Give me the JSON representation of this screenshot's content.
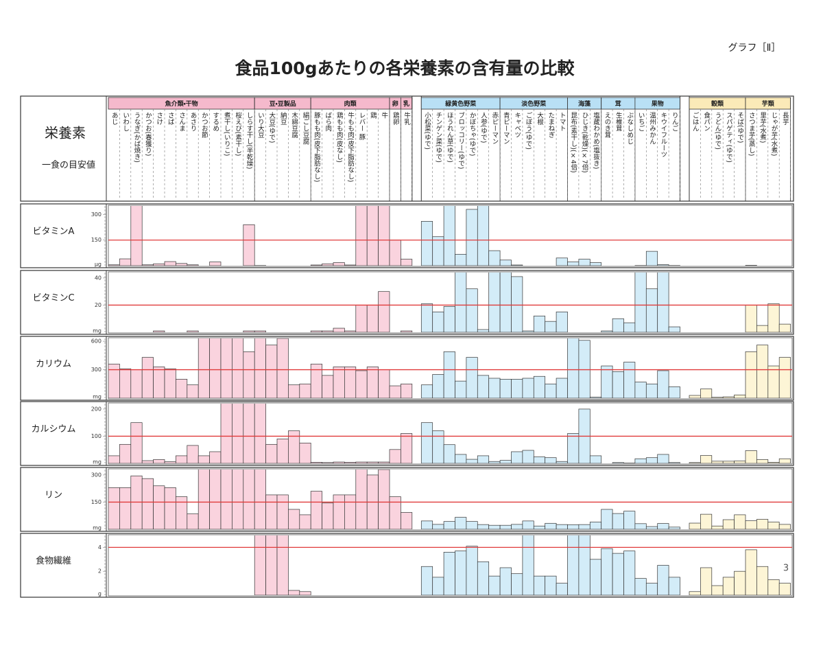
{
  "header": {
    "label": "グラフ［Ⅱ］",
    "title": "食品100gあたりの各栄養素の含有量の比較",
    "page_number": "3"
  },
  "row_header": {
    "nutrient": "栄養素",
    "target": "一食の目安値"
  },
  "chart_data": {
    "type": "bar",
    "target_color": "#e03a3a",
    "groups": [
      {
        "name": "魚介類・干物",
        "color": "#fad3de",
        "header_color": "#f5b9cc",
        "categories": [
          "あじ",
          "いわし",
          "うなぎ(かば焼き)",
          "かつお(春獲り)",
          "さけ",
          "さば",
          "さんま",
          "あさり",
          "かつお節",
          "するめ",
          "煮干し(いりこ)",
          "桜えび(素干し)",
          "しらす干し(半乾燥)"
        ]
      },
      {
        "name": "豆・豆製品",
        "color": "#fad3de",
        "header_color": "#f5b9cc",
        "categories": [
          "いり大豆",
          "大豆(ゆで)",
          "納豆",
          "木綿豆腐",
          "絹ごし豆腐"
        ]
      },
      {
        "name": "肉類",
        "color": "#fad3de",
        "header_color": "#f5b9cc",
        "categories": [
          "豚もも肉(皮下脂肪なし)",
          "ばら肉",
          "鶏もも肉(皮なし)",
          "牛もも肉(皮下脂肪なし)",
          "レバー 豚",
          "鶏",
          "牛"
        ]
      },
      {
        "name": "卵",
        "color": "#fad3de",
        "header_color": "#f5b9cc",
        "categories": [
          "鶏卵"
        ]
      },
      {
        "name": "乳",
        "color": "#fad3de",
        "header_color": "#f5b9cc",
        "categories": [
          "牛乳"
        ]
      },
      {
        "name": "緑黄色野菜",
        "color": "#d3ecf8",
        "header_color": "#b9e0f5",
        "categories": [
          "小松菜(ゆで)",
          "チンゲン菜(ゆで)",
          "ほうれん草(ゆで)",
          "ブロッコリー(ゆで)",
          "かぼちゃ(ゆで)",
          "人参(ゆで)",
          "赤ピーマン"
        ]
      },
      {
        "name": "淡色野菜",
        "color": "#d3ecf8",
        "header_color": "#b9e0f5",
        "categories": [
          "青ピーマン",
          "キャベツ",
          "ごぼう(ゆで)",
          "大根",
          "たまねぎ",
          "トマト"
        ]
      },
      {
        "name": "海藻",
        "color": "#d3ecf8",
        "header_color": "#b9e0f5",
        "categories": [
          "昆布(素干し)(×4倍)",
          "ひじき(乾燥)(×7倍)",
          "塩蔵わかめ(塩抜き)"
        ]
      },
      {
        "name": "茸",
        "color": "#d3ecf8",
        "header_color": "#b9e0f5",
        "categories": [
          "えのき茸",
          "生椎茸",
          "ぶなしめじ"
        ]
      },
      {
        "name": "果物",
        "color": "#d3ecf8",
        "header_color": "#b9e0f5",
        "categories": [
          "いちご",
          "温州みかん",
          "キウイフルーツ",
          "りんご"
        ]
      },
      {
        "name": "穀類",
        "color": "#fdf5d6",
        "header_color": "#fbeab8",
        "categories": [
          "ごはん",
          "食パン",
          "うどん(ゆで)",
          "スパゲティ(ゆで)",
          "そば(ゆで)"
        ]
      },
      {
        "name": "芋類",
        "color": "#fdf5d6",
        "header_color": "#fbeab8",
        "categories": [
          "さつま芋(蒸し)",
          "里芋(水煮)",
          "じゃが芋(水煮)",
          "長芋"
        ]
      }
    ],
    "series": [
      {
        "name": "ビタミンA",
        "unit": "μg",
        "target": 150,
        "ylim": [
          0,
          350
        ],
        "yticks": [
          150,
          300
        ],
        "values": [
          [
            5,
            40,
            1500,
            5,
            11,
            24,
            13,
            5,
            0,
            22,
            0,
            0,
            240
          ],
          [
            1,
            0,
            0,
            0,
            0
          ],
          [
            4,
            11,
            18,
            4,
            13000,
            14000,
            1100
          ],
          [
            150
          ],
          [
            38
          ],
          [
            260,
            170,
            450,
            67,
            330,
            720,
            88
          ],
          [
            33,
            4,
            0,
            0,
            0,
            45
          ],
          [
            22,
            38,
            18
          ],
          [
            0,
            0,
            0
          ],
          [
            1,
            84,
            6,
            1
          ],
          [
            0,
            0,
            0,
            0,
            0
          ],
          [
            2,
            0,
            0,
            0
          ]
        ]
      },
      {
        "name": "ビタミンC",
        "unit": "mg",
        "target": 20,
        "ylim": [
          0,
          44
        ],
        "yticks": [
          20,
          40
        ],
        "values": [
          [
            0,
            0,
            0,
            0,
            1,
            0,
            0,
            1,
            0,
            0,
            0,
            0,
            1
          ],
          [
            1,
            0,
            0,
            0,
            0
          ],
          [
            1,
            1,
            3,
            1,
            20,
            20,
            30
          ],
          [
            0
          ],
          [
            1
          ],
          [
            21,
            15,
            19,
            54,
            32,
            2,
            170
          ],
          [
            76,
            41,
            1,
            12,
            8,
            15
          ],
          [
            0,
            0,
            0
          ],
          [
            1,
            10,
            7
          ],
          [
            62,
            32,
            69,
            4
          ],
          [
            0,
            0,
            0,
            0,
            0
          ],
          [
            20,
            5,
            21,
            6
          ]
        ]
      },
      {
        "name": "カリウム",
        "unit": "mg",
        "target": 300,
        "ylim": [
          0,
          630
        ],
        "yticks": [
          300,
          600
        ],
        "values": [
          [
            360,
            310,
            300,
            430,
            330,
            310,
            200,
            140,
            940,
            1100,
            1200,
            1200,
            490
          ],
          [
            2000,
            560,
            630,
            140,
            150
          ],
          [
            360,
            240,
            330,
            330,
            290,
            330,
            300
          ],
          [
            130
          ],
          [
            150
          ],
          [
            140,
            250,
            490,
            180,
            430,
            240,
            210
          ],
          [
            200,
            200,
            210,
            230,
            150,
            210
          ],
          [
            6100,
            610,
            10
          ],
          [
            340,
            280,
            380
          ],
          [
            170,
            150,
            290,
            120
          ],
          [
            29,
            97,
            9,
            14,
            34
          ],
          [
            490,
            560,
            340,
            430
          ]
        ]
      },
      {
        "name": "カルシウム",
        "unit": "mg",
        "target": 100,
        "ylim": [
          0,
          220
        ],
        "yticks": [
          100,
          200
        ],
        "values": [
          [
            28,
            70,
            150,
            10,
            14,
            6,
            28,
            66,
            28,
            43,
            2200,
            2000,
            520
          ],
          [
            250,
            70,
            90,
            120,
            75
          ],
          [
            4,
            3,
            5,
            4,
            5,
            5,
            5
          ],
          [
            51
          ],
          [
            110
          ],
          [
            150,
            120,
            69,
            33,
            15,
            28,
            7
          ],
          [
            11,
            43,
            48,
            24,
            21,
            7
          ],
          [
            110,
            200,
            28
          ],
          [
            0,
            3,
            1
          ],
          [
            17,
            21,
            33,
            3
          ],
          [
            3,
            29,
            8,
            8,
            9
          ],
          [
            47,
            14,
            4,
            17
          ]
        ]
      },
      {
        "name": "リン",
        "unit": "mg",
        "target": 150,
        "ylim": [
          0,
          330
        ],
        "yticks": [
          150,
          300
        ],
        "values": [
          [
            230,
            230,
            295,
            280,
            240,
            230,
            180,
            85,
            790,
            1100,
            1500,
            1200,
            860
          ],
          [
            710,
            190,
            190,
            110,
            80
          ],
          [
            210,
            145,
            190,
            190,
            340,
            300,
            330
          ],
          [
            180
          ],
          [
            93
          ],
          [
            46,
            27,
            43,
            66,
            43,
            26,
            22
          ],
          [
            22,
            27,
            46,
            18,
            33,
            26
          ],
          [
            25,
            26,
            40
          ],
          [
            110,
            87,
            100
          ],
          [
            31,
            15,
            32,
            12
          ],
          [
            34,
            83,
            18,
            53,
            80
          ],
          [
            47,
            55,
            40,
            27
          ]
        ]
      },
      {
        "name": "食物繊維",
        "unit": "g",
        "target": 4,
        "ylim": [
          0,
          5
        ],
        "yticks": [
          2,
          4
        ],
        "values": [
          [
            0,
            0,
            0,
            0,
            0,
            0,
            0,
            0,
            0,
            0,
            0,
            0,
            0
          ],
          [
            19.4,
            8.5,
            6.7,
            0.4,
            0.3
          ],
          [
            0,
            0,
            0,
            0,
            0,
            0,
            0
          ],
          [
            0
          ],
          [
            0
          ],
          [
            2.4,
            1.5,
            3.6,
            3.7,
            4.1,
            2.8,
            1.6
          ],
          [
            2.3,
            1.8,
            6.1,
            1.6,
            1.6,
            1.0
          ],
          [
            27,
            43,
            3.0
          ],
          [
            3.9,
            3.5,
            3.7
          ],
          [
            1.4,
            1.0,
            2.5,
            1.5
          ],
          [
            0.3,
            2.3,
            0.8,
            1.5,
            2.0
          ],
          [
            3.8,
            2.4,
            1.3,
            1.0
          ]
        ]
      }
    ]
  }
}
